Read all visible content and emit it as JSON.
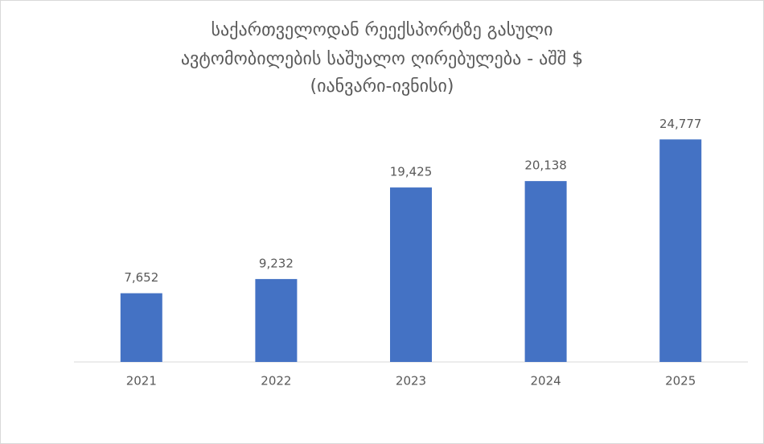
{
  "chart_data": {
    "type": "bar",
    "title": [
      "საქართველოდან რეექსპორტზე გასული",
      "ავტომობილების საშუალო ღირებულება - აშშ $",
      "(იანვარი-ივნისი)"
    ],
    "categories": [
      "2021",
      "2022",
      "2023",
      "2024",
      "2025"
    ],
    "values": [
      7652,
      9232,
      19425,
      20138,
      24777
    ],
    "value_labels": [
      "7,652",
      "9,232",
      "19,425",
      "20,138",
      "24,777"
    ],
    "color": "#4472c4",
    "ylim": [
      0,
      30000
    ]
  }
}
